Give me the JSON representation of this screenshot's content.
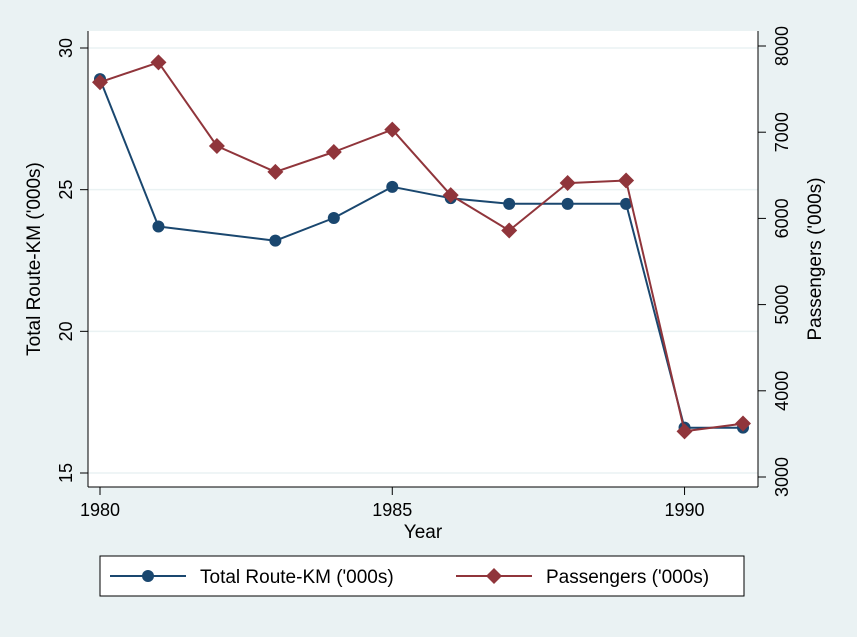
{
  "chart_data": {
    "type": "line",
    "xlabel": "Year",
    "ylabel": "Total Route-KM ('000s)",
    "y2label": "Passengers ('000s)",
    "xlim": [
      1980,
      1991
    ],
    "ylim": [
      15,
      30
    ],
    "y2lim": [
      3000,
      8000
    ],
    "xticks": [
      1980,
      1985,
      1990
    ],
    "yticks": [
      15,
      20,
      25,
      30
    ],
    "y2ticks": [
      3000,
      4000,
      5000,
      6000,
      7000,
      8000
    ],
    "grid": true,
    "legend_position": "bottom",
    "series": [
      {
        "name": "Total Route-KM ('000s)",
        "axis": "left",
        "color": "#1a476f",
        "marker": "circle",
        "x": [
          1980,
          1981,
          1983,
          1984,
          1985,
          1986,
          1987,
          1988,
          1989,
          1990,
          1991
        ],
        "values": [
          28.9,
          23.7,
          23.2,
          24.0,
          25.1,
          24.7,
          24.5,
          24.5,
          24.5,
          16.6,
          16.6
        ]
      },
      {
        "name": "Passengers ('000s)",
        "axis": "right",
        "color": "#90353b",
        "marker": "diamond",
        "x": [
          1980,
          1981,
          1982,
          1983,
          1984,
          1985,
          1986,
          1987,
          1988,
          1989,
          1990,
          1991
        ],
        "values": [
          7580,
          7810,
          6840,
          6540,
          6770,
          7030,
          6270,
          5860,
          6410,
          6440,
          3530,
          3620
        ]
      }
    ]
  }
}
